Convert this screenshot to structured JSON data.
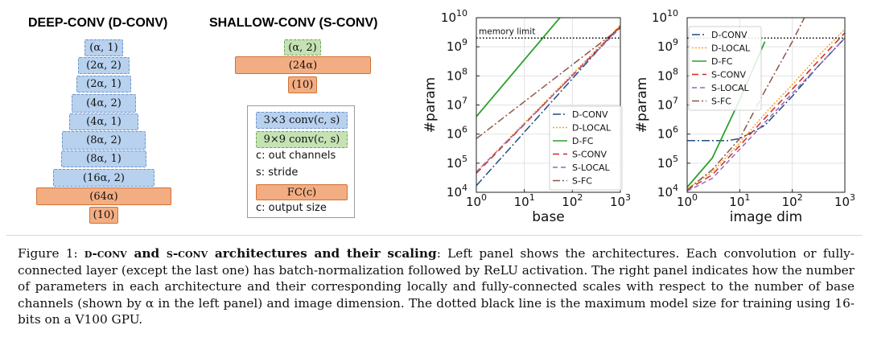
{
  "left_panel": {
    "deep_title": "DEEP-CONV (D-CONV)",
    "shallow_title": "SHALLOW-CONV (S-CONV)",
    "deep_blocks": [
      {
        "label": "(α, 1)",
        "kind": "blue"
      },
      {
        "label": "(2α, 2)",
        "kind": "blue"
      },
      {
        "label": "(2α, 1)",
        "kind": "blue"
      },
      {
        "label": "(4α, 2)",
        "kind": "blue"
      },
      {
        "label": "(4α, 1)",
        "kind": "blue"
      },
      {
        "label": "(8α, 2)",
        "kind": "blue"
      },
      {
        "label": "(8α, 1)",
        "kind": "blue"
      },
      {
        "label": "(16α, 2)",
        "kind": "blue"
      },
      {
        "label": "(64α)",
        "kind": "orange"
      },
      {
        "label": "(10)",
        "kind": "orange"
      }
    ],
    "shallow_blocks": [
      {
        "label": "(α, 2)",
        "kind": "green"
      },
      {
        "label": "(24α)",
        "kind": "orange"
      },
      {
        "label": "(10)",
        "kind": "orange"
      }
    ],
    "legend": {
      "conv3": "3×3 conv(c, s)",
      "conv9": "9×9 conv(c, s)",
      "c_out": "c: out channels",
      "s_stride": "s: stride",
      "fc": "FC(c)",
      "c_size": "c: output size"
    }
  },
  "colors": {
    "blue_block": "#b7d1ef",
    "green_block": "#c5e2b4",
    "orange_block": "#f3ad82",
    "D-CONV": "#1f4e79",
    "D-LOCAL": "#f5a623",
    "D-FC": "#2ca02c",
    "S-CONV": "#d62728",
    "S-LOCAL": "#9467bd",
    "S-FC": "#8c564b"
  },
  "chart_data": [
    {
      "type": "line",
      "xlabel": "base",
      "ylabel": "#param",
      "xscale": "log",
      "yscale": "log",
      "xlim": [
        1,
        1000
      ],
      "ylim": [
        10000,
        10000000000
      ],
      "xticks": [
        "10^0",
        "10^1",
        "10^2",
        "10^3"
      ],
      "yticks": [
        "10^4",
        "10^5",
        "10^6",
        "10^7",
        "10^8",
        "10^9",
        "10^10"
      ],
      "hline": {
        "y": 2000000000,
        "label": "memory limit"
      },
      "legend_position": "lower-right",
      "series": [
        {
          "name": "D-CONV",
          "x": [
            1,
            1000
          ],
          "y": [
            17000,
            5500000000
          ]
        },
        {
          "name": "D-LOCAL",
          "x": [
            1,
            1000
          ],
          "y": [
            50000,
            5500000000
          ]
        },
        {
          "name": "D-FC",
          "x": [
            1,
            55
          ],
          "y": [
            4000000,
            10000000000
          ]
        },
        {
          "name": "S-CONV",
          "x": [
            1,
            1000
          ],
          "y": [
            45000,
            5000000000
          ]
        },
        {
          "name": "S-LOCAL",
          "x": [
            1,
            1000
          ],
          "y": [
            50000,
            4500000000
          ]
        },
        {
          "name": "S-FC",
          "x": [
            1,
            1000
          ],
          "y": [
            700000,
            4500000000
          ]
        }
      ]
    },
    {
      "type": "line",
      "xlabel": "image dim",
      "ylabel": "#param",
      "xscale": "log",
      "yscale": "log",
      "xlim": [
        1,
        1000
      ],
      "ylim": [
        10000,
        10000000000
      ],
      "xticks": [
        "10^0",
        "10^1",
        "10^2",
        "10^3"
      ],
      "yticks": [
        "10^4",
        "10^5",
        "10^6",
        "10^7",
        "10^8",
        "10^9",
        "10^10"
      ],
      "hline": {
        "y": 2000000000
      },
      "legend_position": "upper-left",
      "series": [
        {
          "name": "D-CONV",
          "x": [
            1,
            3,
            6,
            10,
            30,
            100,
            300,
            1000
          ],
          "y": [
            600000,
            600000,
            600000,
            700000,
            2000000,
            20000000,
            200000000,
            2000000000
          ]
        },
        {
          "name": "D-LOCAL",
          "x": [
            1,
            3,
            10,
            30,
            100,
            300,
            1000
          ],
          "y": [
            13000,
            50000,
            500000,
            5000000,
            50000000,
            450000000,
            4000000000
          ]
        },
        {
          "name": "D-FC",
          "x": [
            1,
            3,
            10,
            30
          ],
          "y": [
            15000,
            150000,
            15000000,
            1500000000
          ]
        },
        {
          "name": "S-CONV",
          "x": [
            1,
            3,
            10,
            30,
            100,
            300,
            1000
          ],
          "y": [
            12000,
            40000,
            400000,
            3500000,
            35000000,
            300000000,
            3000000000
          ]
        },
        {
          "name": "S-LOCAL",
          "x": [
            1,
            3,
            10,
            30,
            100,
            300,
            1000
          ],
          "y": [
            11000,
            30000,
            300000,
            2500000,
            25000000,
            200000000,
            2000000000
          ]
        },
        {
          "name": "S-FC",
          "x": [
            1,
            3,
            10,
            30,
            100,
            170
          ],
          "y": [
            12000,
            60000,
            700000,
            30000000,
            1500000000,
            10000000000
          ]
        }
      ]
    }
  ],
  "caption": {
    "fig": "Figure 1: ",
    "title_part1": "d-conv",
    "title_and": " and ",
    "title_part2": "s-conv",
    "title_rest": " architectures and their scaling",
    "body": ": Left panel shows the architectures. Each convolution or fully-connected layer (except the last one) has batch-normalization followed by ReLU activation. The right panel indicates how the number of parameters in each architecture and their corresponding locally and fully-connected scales with respect to the number of base channels (shown by α in the left panel) and image dimension. The dotted black line is the maximum model size for training using 16-bits on a V100 GPU."
  }
}
